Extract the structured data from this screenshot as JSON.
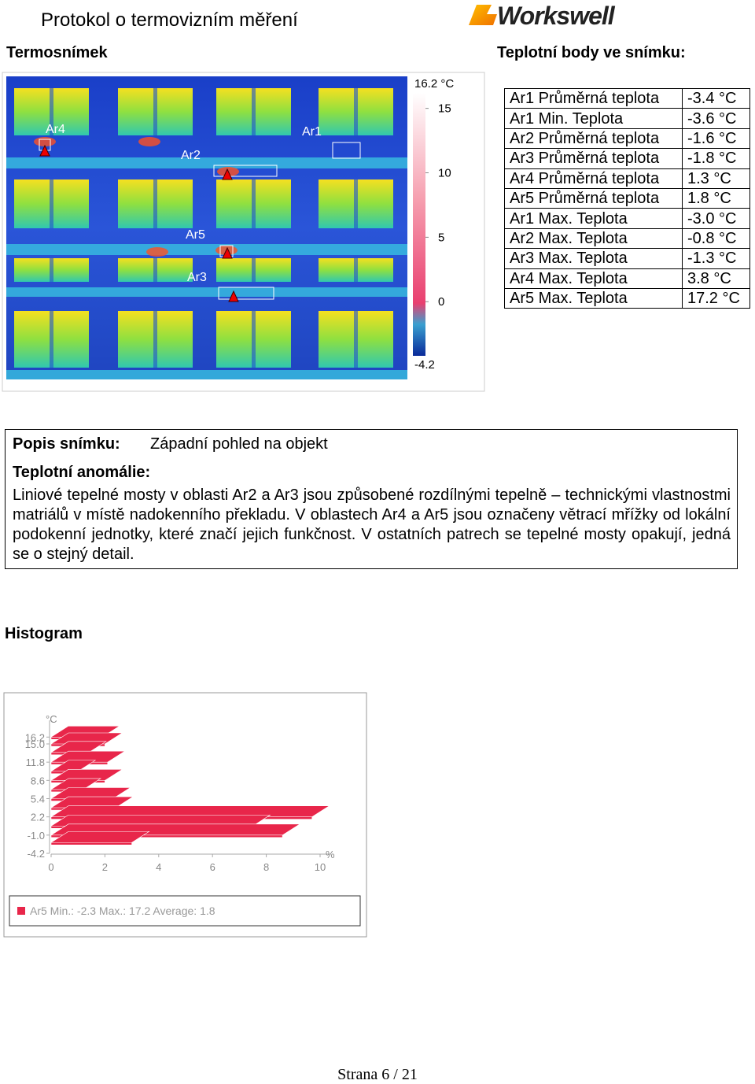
{
  "header": {
    "title": "Protokol o termovizním měření",
    "logo": "Workswell"
  },
  "thermogram": {
    "heading": "Termosnímek",
    "area_labels": [
      "Ar4",
      "Ar2",
      "Ar1",
      "Ar5",
      "Ar3"
    ],
    "scale": {
      "max": {
        "value": 16.2,
        "label": "16.2 °C"
      },
      "min": -4.2,
      "ticks": [
        15,
        10,
        5,
        0
      ]
    }
  },
  "points": {
    "heading": "Teplotní body ve snímku:",
    "rows": [
      [
        "Ar1 Průměrná teplota",
        "-3.4 °C"
      ],
      [
        "Ar1 Min. Teplota",
        "-3.6 °C"
      ],
      [
        "Ar2 Průměrná teplota",
        "-1.6 °C"
      ],
      [
        "Ar3 Průměrná teplota",
        "-1.8 °C"
      ],
      [
        "Ar4 Průměrná teplota",
        "1.3 °C"
      ],
      [
        "Ar5 Průměrná teplota",
        "1.8 °C"
      ],
      [
        "Ar1 Max. Teplota",
        "-3.0 °C"
      ],
      [
        "Ar2 Max. Teplota",
        "-0.8 °C"
      ],
      [
        "Ar3 Max. Teplota",
        "-1.3 °C"
      ],
      [
        "Ar4 Max. Teplota",
        "3.8 °C"
      ],
      [
        "Ar5 Max. Teplota",
        "17.2 °C"
      ]
    ]
  },
  "description": {
    "label": "Popis snímku:",
    "text": "Západní pohled na objekt",
    "anomaly_label": "Teplotní anomálie:",
    "anomaly_text": "Liniové tepelné mosty v oblasti Ar2 a Ar3 jsou způsobené rozdílnými tepelně – technickými vlastnostmi matriálů v místě nadokenního překladu. V oblastech Ar4 a Ar5 jsou označeny větrací mřížky od lokální podokenní jednotky, které značí jejich funkčnost. V ostatních patrech se tepelné mosty opakují, jedná se o stejný detail."
  },
  "histogram": {
    "heading": "Histogram",
    "y_unit": "°C",
    "x_unit": "%",
    "yticks": [
      {
        "value": 16.2,
        "label": "16.2"
      },
      {
        "value": 15,
        "label": "15.0"
      },
      {
        "value": 11.8,
        "label": "11.8"
      },
      {
        "value": 8.6,
        "label": "8.6"
      },
      {
        "value": 5.4,
        "label": "5.4"
      },
      {
        "value": 2.2,
        "label": "2.2"
      },
      {
        "value": -1,
        "label": "-1.0"
      },
      {
        "value": -4.2,
        "label": "-4.2"
      }
    ],
    "xticks": [
      0,
      2,
      4,
      6,
      8,
      10
    ],
    "temperatures": [
      16.2,
      15.0,
      13.5,
      11.8,
      10.2,
      8.6,
      7.0,
      5.4,
      3.8,
      2.2,
      0.6,
      -1.0,
      -2.3
    ],
    "percents": [
      1.9,
      2.0,
      1.4,
      2.1,
      1.0,
      2.0,
      1.2,
      2.3,
      2.4,
      9.7,
      7.5,
      8.6,
      3.0
    ],
    "color": "#e8264a",
    "legend": "Ar5 Min.: -2.3 Max.: 17.2 Average: 1.8"
  },
  "footer": "Strana 6 / 21"
}
